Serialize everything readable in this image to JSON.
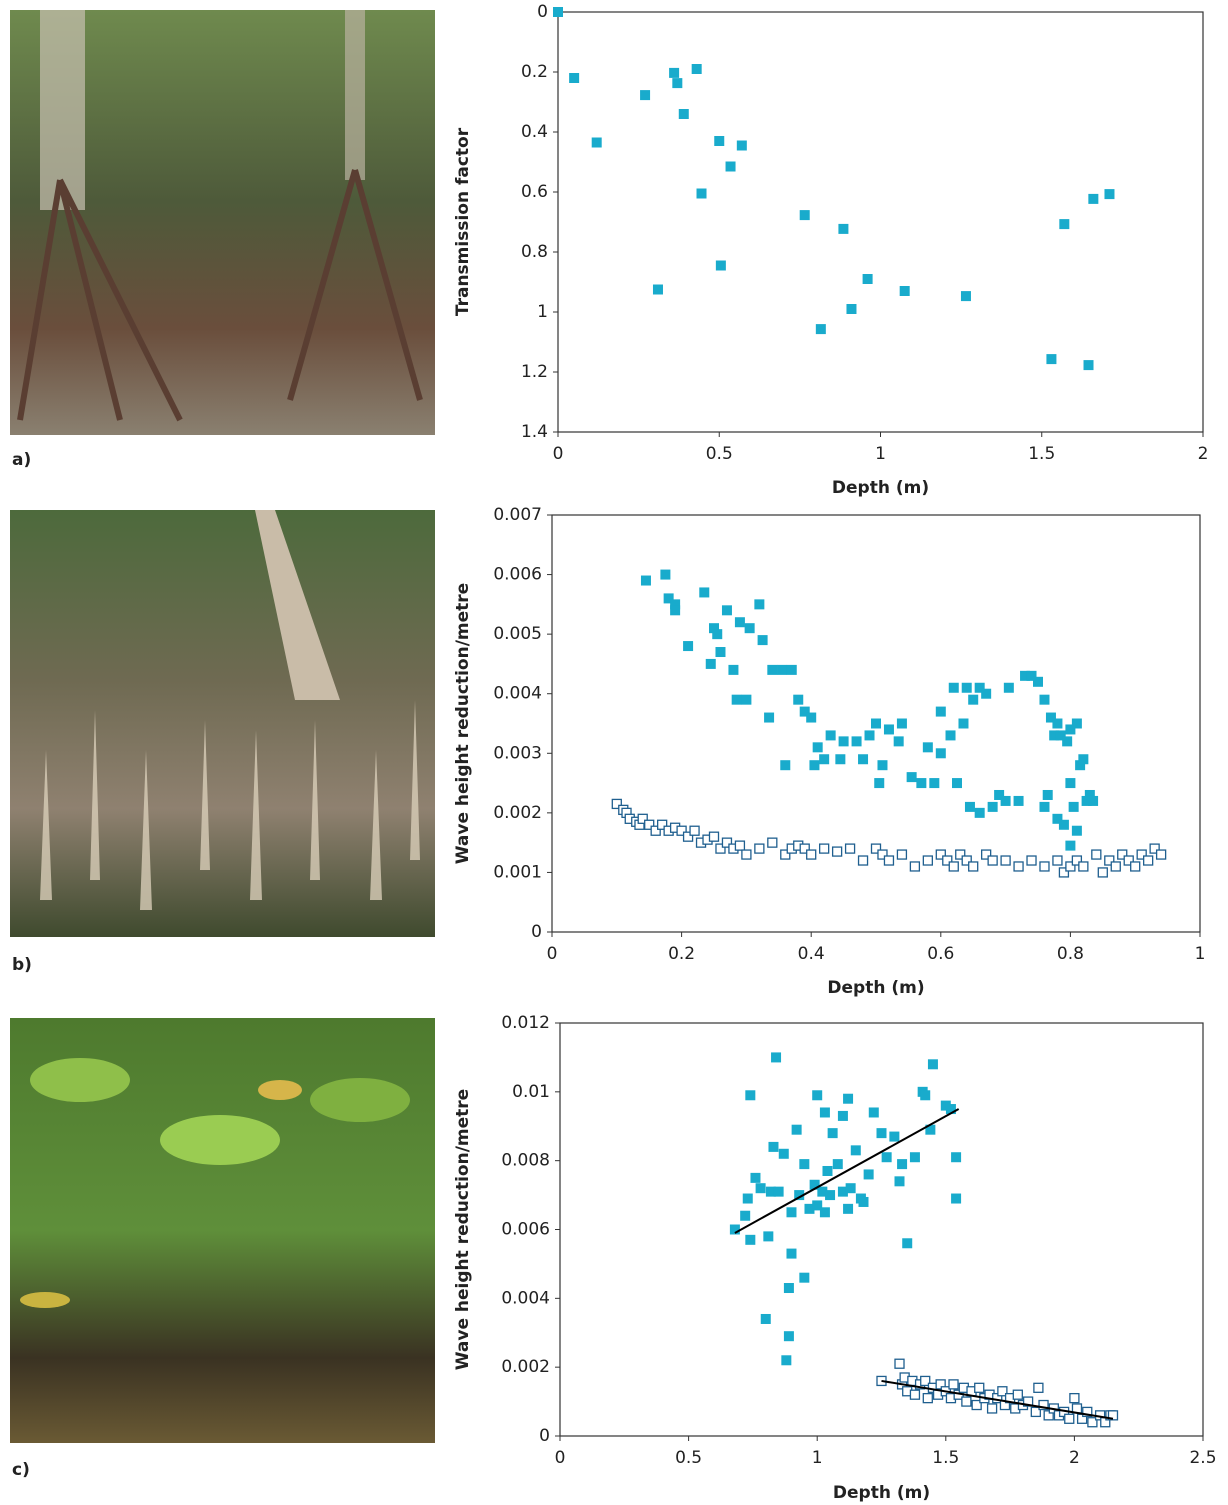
{
  "chart_data": [
    {
      "type": "scatter",
      "panel_label": "a)",
      "x_label": "Depth (m)",
      "y_label": "Transmission factor",
      "xlim": [
        0,
        2
      ],
      "xticks": [
        0,
        0.5,
        1,
        1.5,
        2
      ],
      "ylim": [
        0,
        1.4
      ],
      "yticks": [
        0,
        0.2,
        0.4,
        0.6,
        0.8,
        1,
        1.2,
        1.4
      ],
      "y_inverted": true,
      "series": [
        {
          "color": "#19abcc",
          "marker": "filled",
          "x": [
            0,
            0.05,
            0.12,
            0.27,
            0.36,
            0.37,
            0.43,
            0.39,
            0.5,
            0.57,
            0.535,
            0.445,
            0.31,
            0.505,
            0.765,
            0.885,
            0.815,
            0.91,
            0.96,
            1.075,
            1.265,
            1.53,
            1.645,
            1.57,
            1.66,
            1.71
          ],
          "values": [
            0,
            0.22,
            0.435,
            0.277,
            0.203,
            0.237,
            0.19,
            0.34,
            0.43,
            0.445,
            0.515,
            0.605,
            0.925,
            0.845,
            0.677,
            0.723,
            1.057,
            0.99,
            0.89,
            0.93,
            0.947,
            1.157,
            1.177,
            0.707,
            0.623,
            0.607
          ]
        }
      ]
    },
    {
      "type": "scatter",
      "panel_label": "b)",
      "x_label": "Depth (m)",
      "y_label": "Wave height reduction/metre",
      "xlim": [
        0,
        1
      ],
      "xticks": [
        0,
        0.2,
        0.4,
        0.6,
        0.8,
        1
      ],
      "ylim": [
        0,
        0.007
      ],
      "yticks": [
        0,
        0.001,
        0.002,
        0.003,
        0.004,
        0.005,
        0.006,
        0.007
      ],
      "series": [
        {
          "color": "#19abcc",
          "marker": "filled",
          "x": [
            0.145,
            0.175,
            0.18,
            0.19,
            0.19,
            0.21,
            0.235,
            0.245,
            0.25,
            0.255,
            0.26,
            0.27,
            0.28,
            0.285,
            0.29,
            0.3,
            0.305,
            0.32,
            0.325,
            0.335,
            0.34,
            0.355,
            0.36,
            0.37,
            0.38,
            0.39,
            0.4,
            0.405,
            0.41,
            0.42,
            0.43,
            0.445,
            0.45,
            0.47,
            0.48,
            0.49,
            0.5,
            0.505,
            0.51,
            0.52,
            0.535,
            0.54,
            0.555,
            0.57,
            0.58,
            0.59,
            0.6,
            0.6,
            0.615,
            0.62,
            0.625,
            0.635,
            0.64,
            0.645,
            0.65,
            0.66,
            0.66,
            0.67,
            0.68,
            0.69,
            0.7,
            0.705,
            0.72,
            0.73,
            0.74,
            0.75,
            0.76,
            0.76,
            0.765,
            0.77,
            0.775,
            0.78,
            0.78,
            0.785,
            0.79,
            0.795,
            0.8,
            0.8,
            0.805,
            0.81,
            0.81,
            0.815,
            0.82,
            0.825,
            0.83,
            0.835,
            0.8
          ],
          "values": [
            0.0059,
            0.006,
            0.0056,
            0.0055,
            0.0054,
            0.0048,
            0.0057,
            0.0045,
            0.0051,
            0.005,
            0.0047,
            0.0054,
            0.0044,
            0.0039,
            0.0052,
            0.0039,
            0.0051,
            0.0055,
            0.0049,
            0.0036,
            0.0044,
            0.0044,
            0.0028,
            0.0044,
            0.0039,
            0.0037,
            0.0036,
            0.0028,
            0.0031,
            0.0029,
            0.0033,
            0.0029,
            0.0032,
            0.0032,
            0.0029,
            0.0033,
            0.0035,
            0.0025,
            0.0028,
            0.0034,
            0.0032,
            0.0035,
            0.0026,
            0.0025,
            0.0031,
            0.0025,
            0.003,
            0.0037,
            0.0033,
            0.0041,
            0.0025,
            0.0035,
            0.0041,
            0.0021,
            0.0039,
            0.0041,
            0.002,
            0.004,
            0.0021,
            0.0023,
            0.0022,
            0.0041,
            0.0022,
            0.0043,
            0.0043,
            0.0042,
            0.0039,
            0.0021,
            0.0023,
            0.0036,
            0.0033,
            0.0035,
            0.0019,
            0.0033,
            0.0018,
            0.0032,
            0.0034,
            0.0025,
            0.0021,
            0.0035,
            0.0017,
            0.0028,
            0.0029,
            0.0022,
            0.0023,
            0.0022,
            0.00145
          ]
        },
        {
          "color": "#1f5f8f",
          "marker": "open",
          "x": [
            0.1,
            0.11,
            0.115,
            0.12,
            0.13,
            0.135,
            0.14,
            0.15,
            0.16,
            0.17,
            0.18,
            0.19,
            0.2,
            0.21,
            0.22,
            0.23,
            0.24,
            0.25,
            0.26,
            0.27,
            0.28,
            0.29,
            0.3,
            0.32,
            0.34,
            0.36,
            0.37,
            0.38,
            0.39,
            0.4,
            0.42,
            0.44,
            0.46,
            0.48,
            0.5,
            0.51,
            0.52,
            0.54,
            0.56,
            0.58,
            0.6,
            0.61,
            0.62,
            0.63,
            0.64,
            0.65,
            0.67,
            0.68,
            0.7,
            0.72,
            0.74,
            0.76,
            0.78,
            0.79,
            0.8,
            0.81,
            0.82,
            0.84,
            0.85,
            0.86,
            0.87,
            0.88,
            0.89,
            0.9,
            0.91,
            0.92,
            0.93,
            0.94
          ],
          "values": [
            0.00215,
            0.00205,
            0.002,
            0.0019,
            0.00185,
            0.0018,
            0.0019,
            0.0018,
            0.0017,
            0.0018,
            0.0017,
            0.00175,
            0.0017,
            0.0016,
            0.0017,
            0.0015,
            0.00155,
            0.0016,
            0.0014,
            0.0015,
            0.0014,
            0.00145,
            0.0013,
            0.0014,
            0.0015,
            0.0013,
            0.0014,
            0.00145,
            0.0014,
            0.0013,
            0.0014,
            0.00135,
            0.0014,
            0.0012,
            0.0014,
            0.0013,
            0.0012,
            0.0013,
            0.0011,
            0.0012,
            0.0013,
            0.0012,
            0.0011,
            0.0013,
            0.0012,
            0.0011,
            0.0013,
            0.0012,
            0.0012,
            0.0011,
            0.0012,
            0.0011,
            0.0012,
            0.001,
            0.0011,
            0.0012,
            0.0011,
            0.0013,
            0.001,
            0.0012,
            0.0011,
            0.0013,
            0.0012,
            0.0011,
            0.0013,
            0.0012,
            0.0014,
            0.0013
          ]
        }
      ]
    },
    {
      "type": "scatter",
      "panel_label": "c)",
      "x_label": "Depth (m)",
      "y_label": "Wave height reduction/metre",
      "xlim": [
        0,
        2.5
      ],
      "xticks": [
        0,
        0.5,
        1,
        1.5,
        2,
        2.5
      ],
      "ylim": [
        0,
        0.012
      ],
      "yticks": [
        0,
        0.002,
        0.004,
        0.006,
        0.008,
        0.01,
        0.012
      ],
      "series": [
        {
          "color": "#19abcc",
          "marker": "filled",
          "x": [
            0.68,
            0.72,
            0.73,
            0.74,
            0.74,
            0.76,
            0.78,
            0.8,
            0.81,
            0.82,
            0.83,
            0.84,
            0.85,
            0.87,
            0.88,
            0.89,
            0.89,
            0.9,
            0.9,
            0.92,
            0.93,
            0.95,
            0.95,
            0.97,
            0.99,
            1,
            1,
            1.02,
            1.03,
            1.03,
            1.04,
            1.05,
            1.06,
            1.08,
            1.1,
            1.1,
            1.12,
            1.12,
            1.13,
            1.15,
            1.17,
            1.18,
            1.2,
            1.22,
            1.25,
            1.27,
            1.3,
            1.32,
            1.33,
            1.35,
            1.38,
            1.41,
            1.42,
            1.44,
            1.45,
            1.5,
            1.52,
            1.54,
            1.54
          ],
          "values": [
            0.006,
            0.0064,
            0.0069,
            0.0057,
            0.0099,
            0.0075,
            0.0072,
            0.0034,
            0.0058,
            0.0071,
            0.0084,
            0.011,
            0.0071,
            0.0082,
            0.0022,
            0.0029,
            0.0043,
            0.0065,
            0.0053,
            0.0089,
            0.007,
            0.0046,
            0.0079,
            0.0066,
            0.0073,
            0.0099,
            0.0067,
            0.0071,
            0.0094,
            0.0065,
            0.0077,
            0.007,
            0.0088,
            0.0079,
            0.0093,
            0.0071,
            0.0098,
            0.0066,
            0.0072,
            0.0083,
            0.0069,
            0.0068,
            0.0076,
            0.0094,
            0.0088,
            0.0081,
            0.0087,
            0.0074,
            0.0079,
            0.0056,
            0.0081,
            0.01,
            0.0099,
            0.0089,
            0.0108,
            0.0096,
            0.0095,
            0.0081,
            0.0069
          ]
        },
        {
          "color": "#1f5f8f",
          "marker": "open",
          "x": [
            1.25,
            1.32,
            1.33,
            1.34,
            1.35,
            1.37,
            1.38,
            1.4,
            1.42,
            1.43,
            1.45,
            1.47,
            1.48,
            1.5,
            1.52,
            1.53,
            1.55,
            1.57,
            1.58,
            1.6,
            1.62,
            1.63,
            1.65,
            1.67,
            1.68,
            1.7,
            1.72,
            1.73,
            1.75,
            1.77,
            1.78,
            1.8,
            1.82,
            1.85,
            1.86,
            1.88,
            1.9,
            1.92,
            1.94,
            1.96,
            1.98,
            2,
            2.01,
            2.03,
            2.05,
            2.07,
            2.1,
            2.12,
            2.14,
            2.15
          ],
          "values": [
            0.0016,
            0.0021,
            0.0015,
            0.0017,
            0.0013,
            0.0016,
            0.0012,
            0.0015,
            0.0016,
            0.0011,
            0.0014,
            0.0012,
            0.0015,
            0.0013,
            0.0011,
            0.0015,
            0.0012,
            0.0014,
            0.001,
            0.0013,
            0.0009,
            0.0014,
            0.0011,
            0.0012,
            0.0008,
            0.0011,
            0.0013,
            0.0009,
            0.0011,
            0.0008,
            0.0012,
            0.0009,
            0.001,
            0.0007,
            0.0014,
            0.0009,
            0.0006,
            0.0008,
            0.0006,
            0.0007,
            0.0005,
            0.0011,
            0.0008,
            0.0005,
            0.0007,
            0.0004,
            0.0006,
            0.0004,
            0.0006,
            0.0006
          ]
        },
        {
          "color": "#000000",
          "marker": "line",
          "x": [
            0.68,
            1.55
          ],
          "values": [
            0.0059,
            0.0095
          ]
        },
        {
          "color": "#000000",
          "marker": "line",
          "x": [
            1.25,
            2.15
          ],
          "values": [
            0.0016,
            0.0005
          ]
        }
      ]
    }
  ]
}
